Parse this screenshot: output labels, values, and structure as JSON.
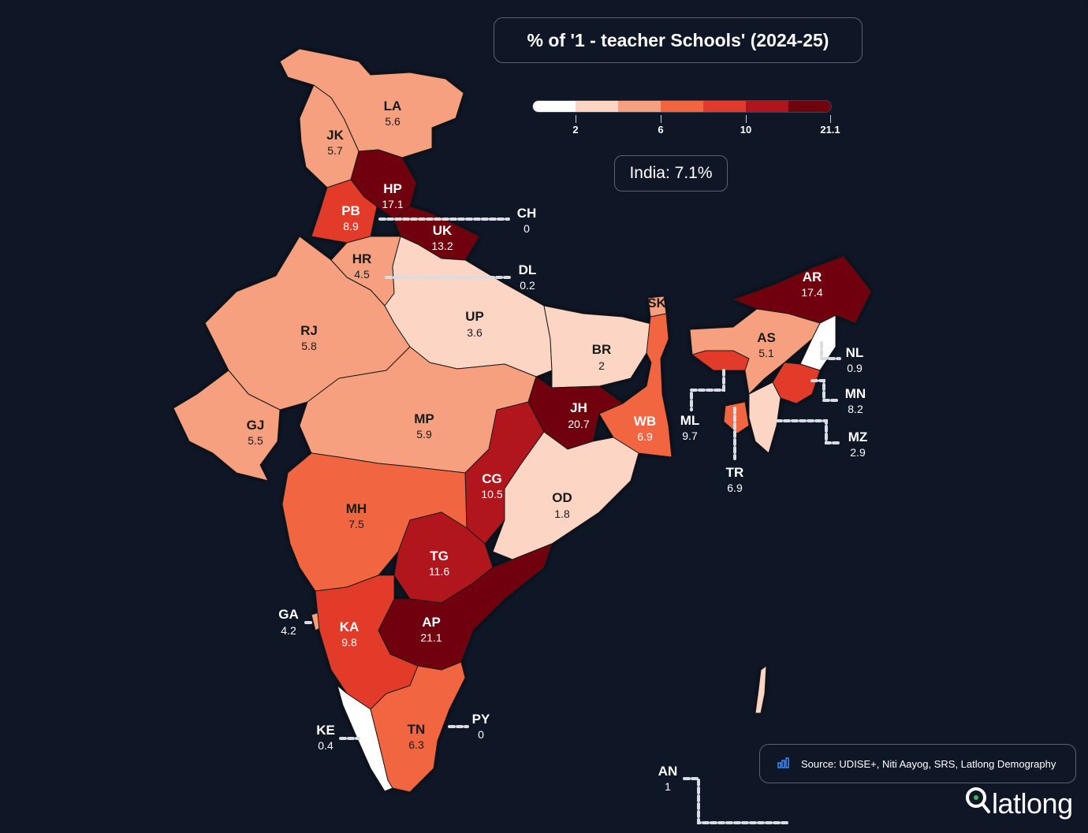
{
  "title": "% of '1 - teacher Schools' (2024-25)",
  "legend": {
    "colors": [
      "#ffffff",
      "#fcd5c5",
      "#f7a07f",
      "#f1653f",
      "#e23a2a",
      "#b0151c",
      "#6f0410"
    ],
    "ticks": [
      "2",
      "6",
      "10",
      "21.1"
    ]
  },
  "india_average": "India: 7.1%",
  "source": "Source: UDISE+, Niti Aayog, SRS, Latlong Demography",
  "brand": {
    "name": "latlong"
  },
  "icons": {
    "source": "bar-chart-icon",
    "brand": "location-pin-icon"
  },
  "colors": {
    "background": "#0f1727",
    "border": "#5a6272",
    "leader": "#d9dde3"
  },
  "states": [
    {
      "code": "LA",
      "value": "5.6"
    },
    {
      "code": "JK",
      "value": "5.7"
    },
    {
      "code": "HP",
      "value": "17.1"
    },
    {
      "code": "PB",
      "value": "8.9"
    },
    {
      "code": "CH",
      "value": "0"
    },
    {
      "code": "UK",
      "value": "13.2"
    },
    {
      "code": "HR",
      "value": "4.5"
    },
    {
      "code": "DL",
      "value": "0.2"
    },
    {
      "code": "RJ",
      "value": "5.8"
    },
    {
      "code": "UP",
      "value": "3.6"
    },
    {
      "code": "SK",
      "value": ""
    },
    {
      "code": "AR",
      "value": "17.4"
    },
    {
      "code": "AS",
      "value": "5.1"
    },
    {
      "code": "NL",
      "value": "0.9"
    },
    {
      "code": "BR",
      "value": "2"
    },
    {
      "code": "MN",
      "value": "8.2"
    },
    {
      "code": "GJ",
      "value": "5.5"
    },
    {
      "code": "MP",
      "value": "5.9"
    },
    {
      "code": "JH",
      "value": "20.7"
    },
    {
      "code": "WB",
      "value": "6.9"
    },
    {
      "code": "ML",
      "value": "9.7"
    },
    {
      "code": "MZ",
      "value": "2.9"
    },
    {
      "code": "CG",
      "value": "10.5"
    },
    {
      "code": "OD",
      "value": "1.8"
    },
    {
      "code": "TR",
      "value": "6.9"
    },
    {
      "code": "MH",
      "value": "7.5"
    },
    {
      "code": "TG",
      "value": "11.6"
    },
    {
      "code": "GA",
      "value": "4.2"
    },
    {
      "code": "KA",
      "value": "9.8"
    },
    {
      "code": "AP",
      "value": "21.1"
    },
    {
      "code": "KE",
      "value": "0.4"
    },
    {
      "code": "TN",
      "value": "6.3"
    },
    {
      "code": "PY",
      "value": "0"
    },
    {
      "code": "AN",
      "value": "1"
    }
  ]
}
